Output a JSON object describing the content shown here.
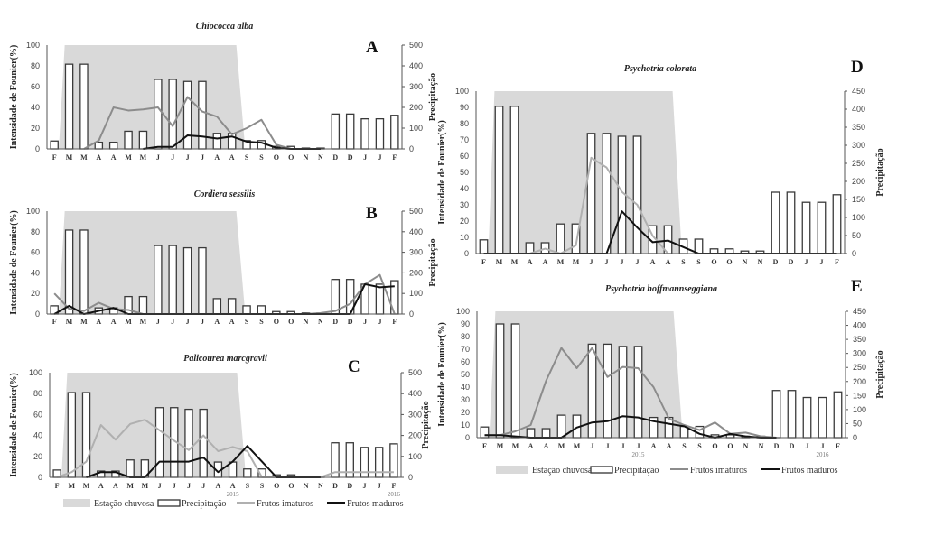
{
  "figure": {
    "legend": {
      "rainy": "Estação chuvosa",
      "precip": "Precipitação",
      "immature": "Frutos imaturos",
      "mature": "Frutos maduros"
    },
    "colors": {
      "rainy_fill": "#d9d9d9",
      "bar_fill": "#ffffff",
      "bar_stroke": "#3a3a3a",
      "immature": "#8c8c8c",
      "immature_light": "#b0b0b0",
      "mature": "#111111"
    }
  },
  "chart_data": [
    {
      "panel": "A",
      "type": "bar+line",
      "title": "Chiococca alba",
      "ylabel": "Intensidade de Founier(%)",
      "y2label": "Precipitação",
      "ylim": [
        0,
        100
      ],
      "yticks": [
        0,
        20,
        40,
        60,
        80,
        100
      ],
      "y2lim": [
        0,
        500
      ],
      "y2ticks": [
        0,
        100,
        200,
        300,
        400,
        500
      ],
      "categories": [
        "F",
        "M",
        "M",
        "A",
        "A",
        "M",
        "M",
        "J",
        "J",
        "J",
        "J",
        "A",
        "A",
        "S",
        "S",
        "O",
        "O",
        "N",
        "N",
        "D",
        "D",
        "J",
        "J",
        "F"
      ],
      "rainy_season": {
        "start_index": 1,
        "end_index": 13
      },
      "series": [
        {
          "name": "Precipitação",
          "kind": "bar",
          "axis": "right",
          "values": [
            38,
            408,
            408,
            32,
            32,
            85,
            85,
            335,
            335,
            325,
            325,
            75,
            75,
            40,
            40,
            12,
            12,
            4,
            4,
            168,
            168,
            145,
            145,
            162
          ]
        },
        {
          "name": "Frutos imaturos",
          "kind": "line",
          "axis": "left",
          "values": [
            null,
            null,
            0,
            8,
            40,
            37,
            38,
            40,
            22,
            50,
            36,
            31,
            14,
            20,
            28,
            4,
            0,
            0,
            0,
            null,
            null,
            null,
            null,
            null
          ]
        },
        {
          "name": "Frutos maduros",
          "kind": "line",
          "axis": "left",
          "values": [
            null,
            null,
            null,
            null,
            null,
            null,
            0,
            2,
            2,
            13,
            12,
            10,
            12,
            7,
            6,
            1,
            0,
            0,
            0,
            null,
            null,
            null,
            null,
            null
          ]
        }
      ]
    },
    {
      "panel": "B",
      "type": "bar+line",
      "title": "Cordiera sessilis",
      "ylabel": "Intensidade de Founier(%)",
      "y2label": "Precipitação",
      "ylim": [
        0,
        100
      ],
      "yticks": [
        0,
        20,
        40,
        60,
        80,
        100
      ],
      "y2lim": [
        0,
        500
      ],
      "y2ticks": [
        0,
        100,
        200,
        300,
        400,
        500
      ],
      "categories": [
        "F",
        "M",
        "M",
        "A",
        "A",
        "M",
        "M",
        "J",
        "J",
        "J",
        "J",
        "A",
        "A",
        "S",
        "S",
        "O",
        "O",
        "N",
        "N",
        "D",
        "D",
        "J",
        "J",
        "F"
      ],
      "rainy_season": {
        "start_index": 1,
        "end_index": 13
      },
      "series": [
        {
          "name": "Precipitação",
          "kind": "bar",
          "axis": "right",
          "values": [
            40,
            408,
            408,
            30,
            30,
            85,
            85,
            333,
            333,
            322,
            322,
            75,
            75,
            40,
            40,
            12,
            12,
            5,
            5,
            168,
            168,
            145,
            145,
            162
          ]
        },
        {
          "name": "Frutos imaturos",
          "kind": "line",
          "axis": "left",
          "values": [
            20,
            5,
            3,
            11,
            5,
            4,
            0,
            0,
            0,
            0,
            0,
            0,
            0,
            0,
            0,
            0,
            0,
            0,
            1,
            3,
            10,
            29,
            38,
            0
          ]
        },
        {
          "name": "Frutos maduros",
          "kind": "line",
          "axis": "left",
          "values": [
            0,
            8,
            0,
            3,
            6,
            0,
            0,
            0,
            0,
            0,
            0,
            0,
            0,
            0,
            0,
            0,
            0,
            0,
            0,
            0,
            0,
            29,
            26,
            27
          ]
        }
      ]
    },
    {
      "panel": "C",
      "type": "bar+line",
      "title": "Palicourea marcgravii",
      "ylabel": "Intensidade de Founier(%)",
      "y2label": "Precipitação",
      "ylim": [
        0,
        100
      ],
      "yticks": [
        0,
        20,
        40,
        60,
        80,
        100
      ],
      "y2lim": [
        0,
        500
      ],
      "y2ticks": [
        0,
        100,
        200,
        300,
        400,
        500
      ],
      "categories": [
        "F",
        "M",
        "M",
        "A",
        "A",
        "M",
        "M",
        "J",
        "J",
        "J",
        "J",
        "A",
        "A",
        "S",
        "S",
        "O",
        "O",
        "N",
        "N",
        "D",
        "D",
        "J",
        "J",
        "F"
      ],
      "year_labels": [
        {
          "index": 12,
          "label": "2015"
        },
        {
          "index": 23,
          "label": "2016"
        }
      ],
      "rainy_season": {
        "start_index": 1,
        "end_index": 13
      },
      "series": [
        {
          "name": "Precipitação",
          "kind": "bar",
          "axis": "right",
          "values": [
            35,
            405,
            405,
            30,
            30,
            83,
            83,
            333,
            333,
            325,
            325,
            73,
            73,
            40,
            40,
            12,
            12,
            4,
            4,
            165,
            165,
            143,
            143,
            160
          ]
        },
        {
          "name": "Frutos imaturos",
          "kind": "line",
          "axis": "left",
          "values": [
            0,
            5,
            15,
            50,
            36,
            51,
            55,
            45,
            35,
            26,
            40,
            25,
            29,
            25,
            0,
            0,
            0,
            0,
            0,
            5,
            5,
            5,
            5,
            5
          ]
        },
        {
          "name": "Frutos maduros",
          "kind": "line",
          "axis": "left",
          "values": [
            null,
            null,
            0,
            5,
            5,
            0,
            0,
            15,
            15,
            15,
            19,
            5,
            15,
            30,
            15,
            0,
            0,
            0,
            0,
            null,
            null,
            null,
            null,
            null
          ]
        }
      ]
    },
    {
      "panel": "D",
      "type": "bar+line",
      "title": "Psychotria colorata",
      "ylabel": "Intensidade de Founier(%)",
      "y2label": "Precipitação",
      "ylim": [
        0,
        100
      ],
      "yticks": [
        0,
        10,
        20,
        30,
        40,
        50,
        60,
        70,
        80,
        90,
        100
      ],
      "y2lim": [
        0,
        450
      ],
      "y2ticks": [
        0,
        50,
        100,
        150,
        200,
        250,
        300,
        350,
        400,
        450
      ],
      "categories": [
        "F",
        "M",
        "M",
        "A",
        "A",
        "M",
        "M",
        "J",
        "J",
        "J",
        "J",
        "A",
        "A",
        "S",
        "S",
        "O",
        "O",
        "N",
        "N",
        "D",
        "D",
        "J",
        "J",
        "F"
      ],
      "rainy_season": {
        "start_index": 1,
        "end_index": 13
      },
      "series": [
        {
          "name": "Precipitação",
          "kind": "bar",
          "axis": "right",
          "values": [
            38,
            408,
            408,
            30,
            30,
            82,
            82,
            333,
            333,
            325,
            325,
            77,
            77,
            40,
            40,
            13,
            13,
            7,
            7,
            170,
            170,
            142,
            142,
            163
          ]
        },
        {
          "name": "Frutos imaturos",
          "kind": "line",
          "axis": "left",
          "values": [
            null,
            null,
            null,
            0,
            3,
            0,
            5,
            59,
            53,
            38,
            30,
            11,
            0,
            null,
            null,
            null,
            null,
            null,
            null,
            null,
            null,
            null,
            null,
            null
          ]
        },
        {
          "name": "Frutos maduros",
          "kind": "line",
          "axis": "left",
          "values": [
            0,
            0,
            0,
            0,
            0,
            0,
            0,
            0,
            0,
            26,
            16,
            7,
            8,
            4,
            0,
            0,
            0,
            0,
            0,
            0,
            0,
            0,
            0,
            0
          ]
        }
      ]
    },
    {
      "panel": "E",
      "type": "bar+line",
      "title": "Psychotria hoffmannseggiana",
      "ylabel": "Intensidade de Founier(%)",
      "y2label": "Precipitação",
      "ylim": [
        0,
        100
      ],
      "yticks": [
        0,
        10,
        20,
        30,
        40,
        50,
        60,
        70,
        80,
        90,
        100
      ],
      "y2lim": [
        0,
        450
      ],
      "y2ticks": [
        0,
        50,
        100,
        150,
        200,
        250,
        300,
        350,
        400,
        450
      ],
      "categories": [
        "F",
        "M",
        "M",
        "A",
        "A",
        "M",
        "M",
        "J",
        "J",
        "J",
        "J",
        "A",
        "A",
        "S",
        "S",
        "O",
        "O",
        "N",
        "N",
        "D",
        "D",
        "J",
        "J",
        "F"
      ],
      "year_labels": [
        {
          "index": 10,
          "label": "2015"
        },
        {
          "index": 22,
          "label": "2016"
        }
      ],
      "rainy_season": {
        "start_index": 1,
        "end_index": 13
      },
      "series": [
        {
          "name": "Precipitação",
          "kind": "bar",
          "axis": "right",
          "values": [
            38,
            405,
            405,
            32,
            32,
            80,
            80,
            333,
            333,
            325,
            325,
            72,
            72,
            40,
            40,
            10,
            10,
            5,
            5,
            168,
            168,
            143,
            143,
            163
          ]
        },
        {
          "name": "Frutos imaturos",
          "kind": "line",
          "axis": "left",
          "values": [
            2,
            2,
            5,
            10,
            45,
            71,
            55,
            71,
            48,
            56,
            55,
            40,
            15,
            10,
            6,
            12,
            3,
            4,
            1,
            0,
            null,
            null,
            null,
            null
          ]
        },
        {
          "name": "Frutos maduros",
          "kind": "line",
          "axis": "left",
          "values": [
            2,
            2,
            1,
            0,
            0,
            0,
            8,
            12,
            13,
            17,
            16,
            13,
            11,
            9,
            3,
            0,
            3,
            1,
            0,
            0,
            null,
            null,
            null,
            null
          ]
        }
      ]
    }
  ]
}
